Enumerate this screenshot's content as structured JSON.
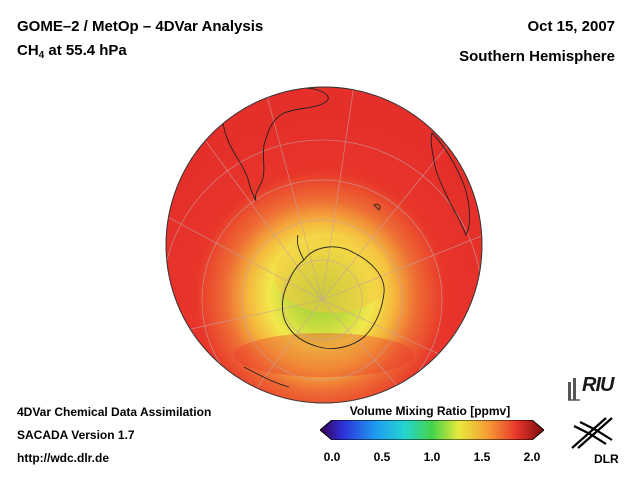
{
  "header": {
    "title": "GOME–2 / MetOp – 4DVar Analysis",
    "subtitle_main": "CH",
    "subtitle_sub": "4",
    "subtitle_rest": " at 55.4 hPa",
    "date": "Oct 15, 2007",
    "hemisphere": "Southern Hemisphere"
  },
  "footer": {
    "line1": "4DVar Chemical Data Assimilation",
    "line2": "SACADA Version 1.7",
    "line3": "http://wdc.dlr.de"
  },
  "colorbar": {
    "title": "Volume Mixing Ratio [ppmv]",
    "range": [
      0.0,
      2.0
    ],
    "ticks": [
      "0.0",
      "0.5",
      "1.0",
      "1.5",
      "2.0"
    ],
    "tick_values": [
      0.0,
      0.5,
      1.0,
      1.5,
      2.0
    ]
  },
  "logos": {
    "riu": "RIU",
    "dlr": "DLR"
  },
  "colors": {
    "outer_high": "#e8352a",
    "mid": "#f0c23a",
    "polar_low": "#a5d23f"
  }
}
